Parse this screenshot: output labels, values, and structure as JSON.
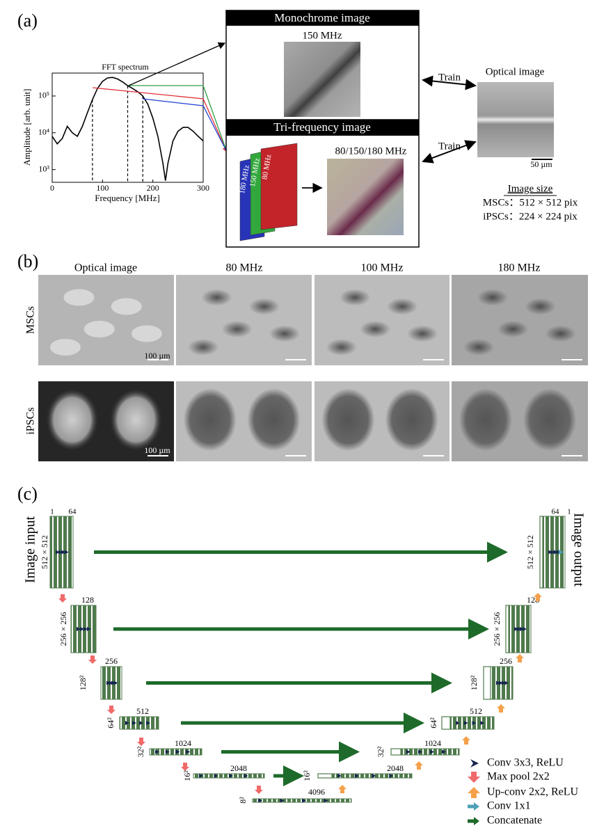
{
  "panel_a": {
    "label": "(a)",
    "monochrome_title": "Monochrome image",
    "monochrome_freq": "150 MHz",
    "tri_title": "Tri-frequency image",
    "tri_layers": [
      "180 MHz",
      "150 MHz",
      "80 MHz"
    ],
    "tri_freq": "80/150/180 MHz",
    "train": [
      "Train",
      "Train"
    ],
    "optical_title": "Optical image",
    "optical_scale": "50 µm",
    "size_title": "Image size",
    "size_lines": [
      "MSCs：512 × 512 pix",
      "iPSCs：224 × 224 pix"
    ]
  },
  "chart_data": {
    "type": "line",
    "title": "FFT spectrum",
    "x_label": "Frequency [MHz]",
    "y_label": "Amplitude [arb. unit]",
    "x": [
      0,
      10,
      20,
      30,
      40,
      50,
      60,
      70,
      80,
      90,
      100,
      110,
      120,
      130,
      140,
      150,
      160,
      170,
      180,
      190,
      200,
      210,
      220,
      225,
      230,
      240,
      250,
      260,
      270,
      280,
      290,
      300
    ],
    "values": [
      8000,
      5000,
      7000,
      15000,
      10000,
      8000,
      15000,
      35000,
      80000,
      160000,
      250000,
      310000,
      320000,
      290000,
      240000,
      190000,
      160000,
      130000,
      100000,
      60000,
      25000,
      8000,
      1500,
      500,
      1500,
      6000,
      11000,
      14000,
      14000,
      11000,
      8000,
      6000
    ],
    "color": "#000000",
    "xlim": [
      0,
      300
    ],
    "xticks": [
      0,
      100,
      200,
      300
    ],
    "ylim": [
      450,
      420000
    ],
    "yticks": [
      {
        "value": 1000,
        "label": "10³"
      },
      {
        "value": 10000,
        "label": "10⁴"
      },
      {
        "value": 100000,
        "label": "10⁵"
      }
    ],
    "log_y": true,
    "markers": [
      80,
      150,
      180
    ]
  },
  "panel_b": {
    "label": "(b)",
    "columns": [
      "Optical image",
      "80 MHz",
      "100 MHz",
      "180 MHz"
    ],
    "rows": [
      "MSCs",
      "iPSCs"
    ],
    "scale_bars": [
      "100 µm",
      "100 µm"
    ]
  },
  "panel_c": {
    "label": "(c)",
    "input_label": "Image input",
    "output_label": "Image output",
    "levels": [
      {
        "size": "512 × 512",
        "left_channels": [
          "1",
          "64"
        ],
        "right_channels": [
          "64",
          "1"
        ]
      },
      {
        "size": "256 × 256",
        "channels": "128"
      },
      {
        "size": "128²",
        "channels": "256"
      },
      {
        "size": "64²",
        "channels": "512"
      },
      {
        "size": "32²",
        "channels": "1024"
      },
      {
        "size": "16²",
        "channels": "2048"
      },
      {
        "size": "8²",
        "channels": "4096"
      }
    ],
    "legend": [
      "Conv 3x3, ReLU",
      "Max pool 2x2",
      "Up-conv 2x2, ReLU",
      "Conv 1x1",
      "Concatenate"
    ]
  }
}
